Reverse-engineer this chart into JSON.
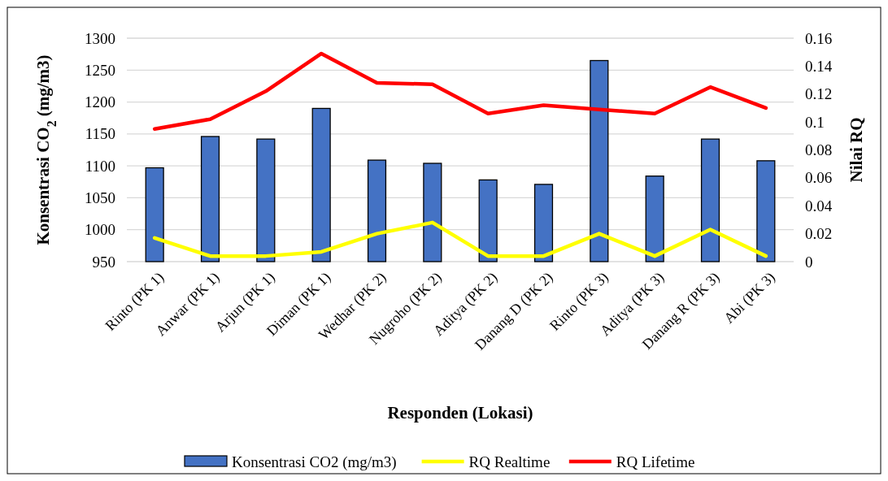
{
  "chart_data": {
    "type": "bar",
    "xlabel": "Responden (Lokasi)",
    "ylabel": "Konsentrasi CO$_{2}$ (mg/m3)",
    "y2label": "Nilai RQ",
    "categories": [
      "Rinto (PK 1)",
      "Anwar (PK 1)",
      "Arjun (PK 1)",
      "Diman (PK 1)",
      "Wedhar (PK 2)",
      "Nugroho (PK 2)",
      "Aditya (PK 2)",
      "Danang D (PK 2)",
      "Rinto (PK 3)",
      "Aditya (PK 3)",
      "Danang R (PK 3)",
      "Abi (PK 3)"
    ],
    "series": [
      {
        "name": "Konsentrasi CO2 (mg/m3)",
        "color": "#4472c4",
        "values": [
          1097,
          1146,
          1142,
          1190,
          1109,
          1104,
          1078,
          1071,
          1265,
          1084,
          1142,
          1108
        ]
      },
      {
        "name": "RQ Realtime",
        "type": "line",
        "axis": "y2",
        "color": "#ffff00",
        "values": [
          0.017,
          0.004,
          0.004,
          0.007,
          0.02,
          0.028,
          0.004,
          0.004,
          0.02,
          0.004,
          0.023,
          0.004
        ]
      },
      {
        "name": "RQ Lifetime",
        "type": "line",
        "axis": "y2",
        "color": "#ff0000",
        "values": [
          0.095,
          0.102,
          0.122,
          0.149,
          0.128,
          0.127,
          0.106,
          0.112,
          0.109,
          0.106,
          0.125,
          0.11
        ]
      }
    ],
    "ylim": [
      950,
      1300
    ],
    "yticks": [
      950,
      1000,
      1050,
      1100,
      1150,
      1200,
      1250,
      1300
    ],
    "y2lim": [
      0,
      0.16
    ],
    "y2ticks": [
      0,
      {
        "value": 0.02,
        "label": "0.02"
      },
      {
        "value": 0.04,
        "label": "0.04"
      },
      {
        "value": 0.06,
        "label": "0.06"
      },
      {
        "value": 0.08,
        "label": "0.08"
      },
      {
        "value": 0.1,
        "label": "0.1"
      },
      {
        "value": 0.12,
        "label": "0.12"
      },
      {
        "value": 0.14,
        "label": "0.14"
      },
      {
        "value": 0.16,
        "label": "0.16"
      }
    ],
    "grid": "y",
    "legend": "bottom",
    "line_style": "solid",
    "marker": "none"
  }
}
